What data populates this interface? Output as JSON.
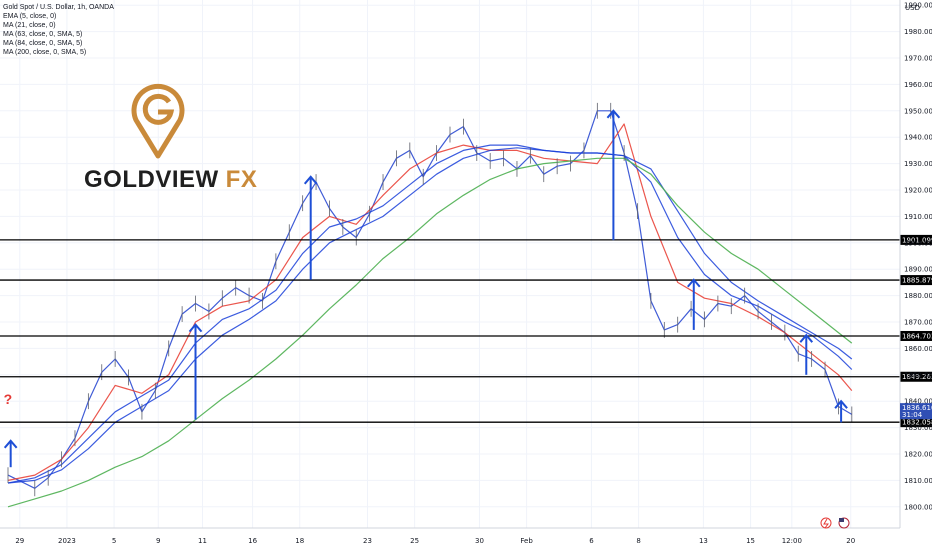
{
  "header": {
    "symbol": "Gold Spot / U.S. Dollar, 1h, OANDA",
    "indicators": [
      "EMA (5, close, 0)",
      "MA (21, close, 0)",
      "MA (63, close, 0, SMA, 5)",
      "MA (84, close, 0, SMA, 5)",
      "MA (200, close, 0, SMA, 5)"
    ]
  },
  "logo": {
    "brand": "GOLDVIEW",
    "suffix": "FX",
    "icon": "map-pin-g-icon"
  },
  "chart_data": {
    "type": "line",
    "price_axis": {
      "currency": "USD",
      "ticks": [
        1800,
        1810,
        1820,
        1830,
        1840,
        1850,
        1860,
        1870,
        1880,
        1890,
        1900,
        1910,
        1920,
        1930,
        1940,
        1950,
        1960,
        1970,
        1980,
        1990
      ],
      "tick_labels": [
        "1800.000",
        "1810.000",
        "1820.000",
        "1830.000",
        "1840.000",
        "1850.000",
        "1860.000",
        "1870.000",
        "1880.000",
        "1890.000",
        "1900.000",
        "1910.000",
        "1920.000",
        "1930.000",
        "1940.000",
        "1950.000",
        "1960.000",
        "1970.000",
        "1980.000",
        "1990.000"
      ],
      "ylim": [
        1795,
        1995
      ]
    },
    "time_axis": {
      "labels": [
        "29",
        "2023",
        "5",
        "9",
        "11",
        "16",
        "18",
        "23",
        "25",
        "30",
        "Feb",
        "6",
        "8",
        "13",
        "15",
        "12:00",
        "20"
      ],
      "xlim": [
        0,
        33
      ]
    },
    "horizontal_levels": [
      {
        "value": 1901.099,
        "label": "1901.099"
      },
      {
        "value": 1885.879,
        "label": "1885.879"
      },
      {
        "value": 1864.703,
        "label": "1864.703"
      },
      {
        "value": 1849.263,
        "label": "1849.263"
      },
      {
        "value": 1832.058,
        "label": "1832.058"
      }
    ],
    "last_price": {
      "value": 1836.61,
      "label": "1836.610",
      "countdown": "31:04",
      "color": "#2f4fb4"
    },
    "series": [
      {
        "name": "EMA (5, close, 0)",
        "color": "#1e3fcf",
        "x": [
          0,
          1,
          1.5,
          2,
          2.5,
          3,
          3.5,
          4,
          4.5,
          5,
          5.5,
          6,
          6.5,
          7,
          7.5,
          8,
          8.5,
          9,
          9.5,
          10,
          10.5,
          11,
          11.5,
          12,
          12.5,
          13,
          13.5,
          14,
          14.5,
          15,
          15.5,
          16,
          16.5,
          17,
          17.5,
          18,
          18.5,
          19,
          19.5,
          20,
          20.5,
          21,
          21.5,
          22,
          22.5,
          23,
          23.5,
          24,
          24.5,
          25,
          25.5,
          26,
          26.5,
          27,
          27.5,
          28,
          28.5,
          29,
          29.5,
          30,
          30.5,
          31,
          31.5
        ],
        "values": [
          1812,
          1807,
          1811,
          1818,
          1826,
          1840,
          1851,
          1856,
          1849,
          1836,
          1844,
          1860,
          1873,
          1877,
          1874,
          1879,
          1883,
          1880,
          1878,
          1893,
          1904,
          1915,
          1923,
          1913,
          1906,
          1902,
          1911,
          1923,
          1932,
          1935,
          1925,
          1934,
          1941,
          1944,
          1934,
          1931,
          1932,
          1928,
          1933,
          1926,
          1929,
          1930,
          1935,
          1950,
          1950,
          1934,
          1912,
          1878,
          1867,
          1869,
          1875,
          1871,
          1877,
          1876,
          1880,
          1874,
          1870,
          1866,
          1858,
          1856,
          1852,
          1838,
          1835
        ]
      },
      {
        "name": "MA (21, close, 0)",
        "color": "#e8382e",
        "x": [
          0,
          1,
          2,
          3,
          4,
          5,
          6,
          7,
          8,
          9,
          10,
          11,
          12,
          13,
          14,
          15,
          16,
          17,
          18,
          19,
          20,
          21,
          22,
          23,
          24,
          25,
          26,
          27,
          28,
          29,
          30,
          31,
          31.5
        ],
        "values": [
          1810,
          1812,
          1818,
          1830,
          1846,
          1843,
          1850,
          1870,
          1876,
          1878,
          1886,
          1902,
          1910,
          1907,
          1918,
          1928,
          1934,
          1937,
          1935,
          1935,
          1932,
          1931,
          1930,
          1945,
          1910,
          1885,
          1879,
          1877,
          1872,
          1866,
          1858,
          1850,
          1844
        ]
      },
      {
        "name": "MA (63, close, 0, SMA, 5)",
        "color": "#1a3fd9",
        "x": [
          0,
          1,
          2,
          3,
          4,
          5,
          6,
          7,
          8,
          9,
          10,
          11,
          12,
          13,
          14,
          15,
          16,
          17,
          18,
          19,
          20,
          21,
          22,
          23,
          24,
          25,
          26,
          27,
          28,
          29,
          30,
          31,
          31.5
        ],
        "values": [
          1809,
          1811,
          1816,
          1826,
          1836,
          1842,
          1848,
          1862,
          1871,
          1875,
          1882,
          1896,
          1906,
          1909,
          1914,
          1922,
          1930,
          1935,
          1937,
          1937,
          1935,
          1934,
          1934,
          1933,
          1923,
          1902,
          1888,
          1880,
          1876,
          1870,
          1865,
          1857,
          1852
        ]
      },
      {
        "name": "MA (84, close, 0, SMA, 5)",
        "color": "#1a3fd9",
        "x": [
          0,
          1,
          2,
          3,
          4,
          5,
          6,
          7,
          8,
          9,
          10,
          11,
          12,
          13,
          14,
          15,
          16,
          17,
          18,
          19,
          20,
          21,
          22,
          23,
          24,
          25,
          26,
          27,
          28,
          29,
          30,
          31,
          31.5
        ],
        "values": [
          1809,
          1810,
          1814,
          1822,
          1832,
          1838,
          1844,
          1856,
          1865,
          1871,
          1878,
          1890,
          1900,
          1905,
          1910,
          1918,
          1926,
          1932,
          1935,
          1936,
          1935,
          1934,
          1934,
          1933,
          1928,
          1912,
          1896,
          1885,
          1878,
          1872,
          1866,
          1860,
          1856
        ]
      },
      {
        "name": "MA (200, close, 0, SMA, 5)",
        "color": "#4caf50",
        "x": [
          0,
          1,
          2,
          3,
          4,
          5,
          6,
          7,
          8,
          9,
          10,
          11,
          12,
          13,
          14,
          15,
          16,
          17,
          18,
          19,
          20,
          21,
          22,
          23,
          24,
          25,
          26,
          27,
          28,
          29,
          30,
          31,
          31.5
        ],
        "values": [
          1800,
          1803,
          1806,
          1810,
          1815,
          1819,
          1825,
          1833,
          1841,
          1848,
          1856,
          1865,
          1875,
          1884,
          1894,
          1902,
          1911,
          1918,
          1924,
          1928,
          1930,
          1931,
          1932,
          1932,
          1926,
          1914,
          1904,
          1896,
          1890,
          1882,
          1874,
          1866,
          1862
        ]
      }
    ],
    "arrows": [
      {
        "x": 0.1,
        "from": 1815,
        "to": 1825,
        "color": "#1e4fd6"
      },
      {
        "x": 7.0,
        "from": 1833,
        "to": 1869,
        "color": "#1e4fd6"
      },
      {
        "x": 11.3,
        "from": 1886,
        "to": 1925,
        "color": "#1e4fd6"
      },
      {
        "x": 22.6,
        "from": 1901,
        "to": 1950,
        "color": "#1e4fd6"
      },
      {
        "x": 25.6,
        "from": 1867,
        "to": 1886,
        "color": "#1e4fd6"
      },
      {
        "x": 29.8,
        "from": 1850,
        "to": 1865,
        "color": "#1e4fd6"
      },
      {
        "x": 31.1,
        "from": 1832,
        "to": 1840,
        "color": "#1e4fd6"
      }
    ],
    "annotation": {
      "text": "?",
      "x": 0.1,
      "y": 1839,
      "color": "#e53935"
    },
    "grid": true
  }
}
